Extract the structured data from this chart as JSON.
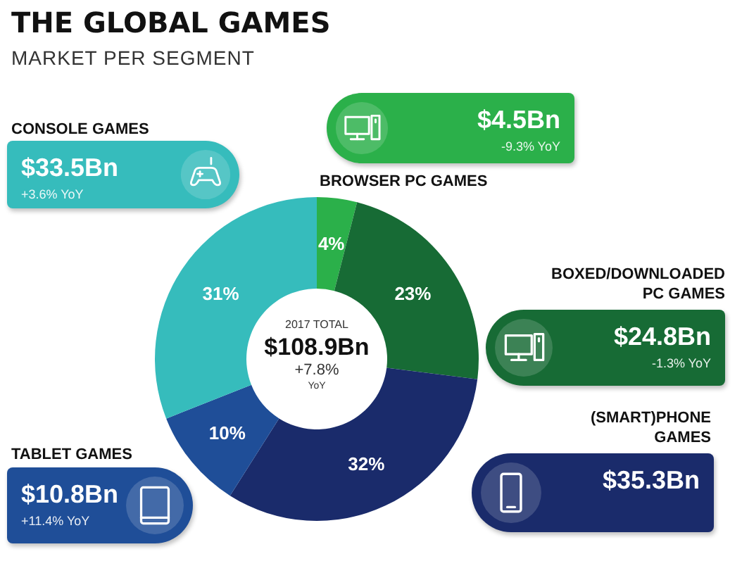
{
  "chart_data": {
    "type": "donut",
    "title": "THE GLOBAL GAMES",
    "subtitle": "MARKET PER SEGMENT",
    "categories": [
      "BROWSER PC GAMES",
      "BOXED/DOWNLOADED PC GAMES",
      "(SMART)PHONE GAMES",
      "TABLET GAMES",
      "CONSOLE GAMES"
    ],
    "values": [
      4,
      23,
      32,
      10,
      31
    ],
    "value_labels": [
      "4%",
      "23%",
      "32%",
      "10%",
      "31%"
    ],
    "colors": [
      "#2bb04a",
      "#176b35",
      "#1a2b6b",
      "#1f4e98",
      "#36bcbc"
    ],
    "annotations": [
      "2017 TOTAL",
      "$108.9Bn",
      "+7.8%",
      "YoY",
      "$4.5Bn",
      "-9.3% YoY",
      "$24.8Bn",
      "-1.3% YoY",
      "$35.3Bn",
      "$10.8Bn",
      "+11.4% YoY",
      "$33.5Bn",
      "+3.6% YoY"
    ]
  }
}
